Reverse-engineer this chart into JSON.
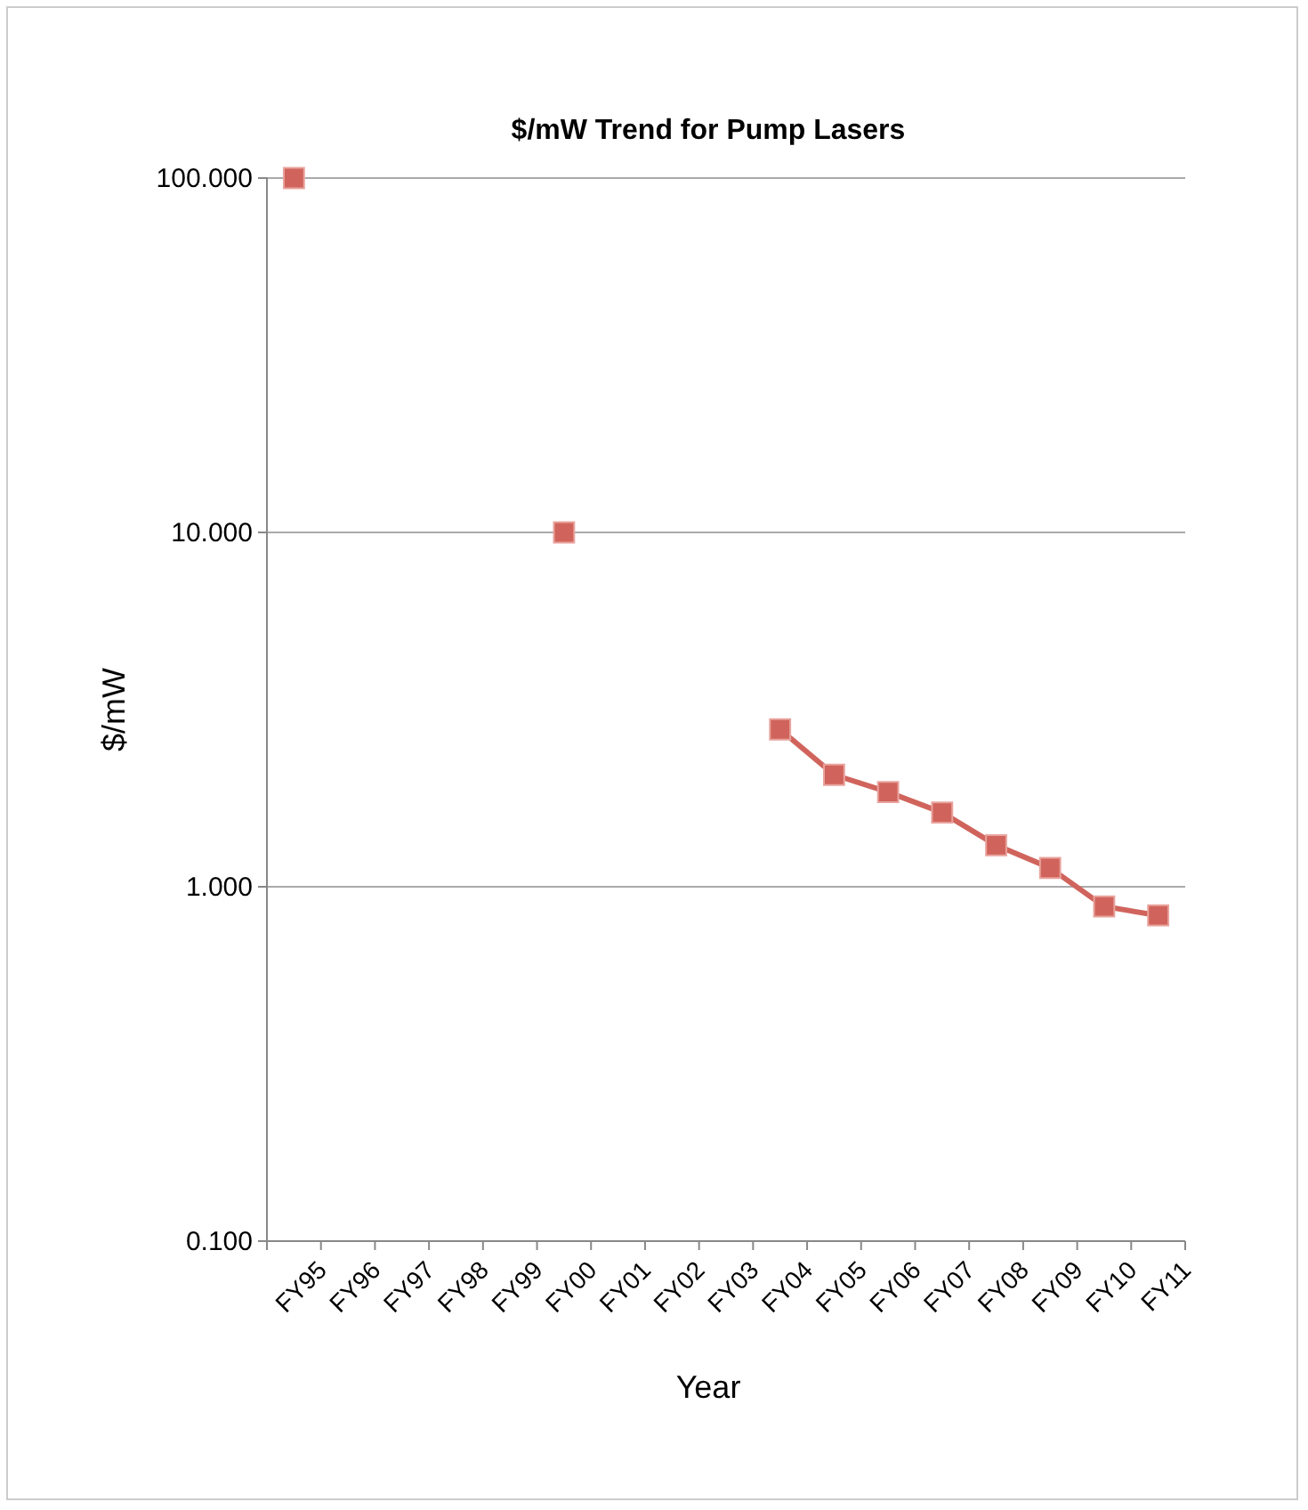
{
  "chart_data": {
    "type": "line",
    "title": "$/mW Trend for Pump Lasers",
    "xlabel": "Year",
    "ylabel": "$/mW",
    "categories": [
      "FY95",
      "FY96",
      "FY97",
      "FY98",
      "FY99",
      "FY00",
      "FY01",
      "FY02",
      "FY03",
      "FY04",
      "FY05",
      "FY06",
      "FY07",
      "FY08",
      "FY09",
      "FY10",
      "FY11"
    ],
    "series": [
      {
        "color": "#d0645c",
        "values": [
          100,
          null,
          null,
          null,
          null,
          10,
          null,
          null,
          null,
          2.78,
          2.07,
          1.85,
          1.62,
          1.31,
          1.13,
          0.88,
          0.83
        ]
      }
    ],
    "log": true,
    "ylim": [
      0.1,
      100
    ],
    "yticks": [
      {
        "value": 0.1,
        "label": "0.100"
      },
      {
        "value": 1,
        "label": "1.000"
      },
      {
        "value": 10,
        "label": "10.000"
      },
      {
        "value": 100,
        "label": "100.000"
      }
    ],
    "grid": "y",
    "marker": "square",
    "line_style": "solid"
  }
}
